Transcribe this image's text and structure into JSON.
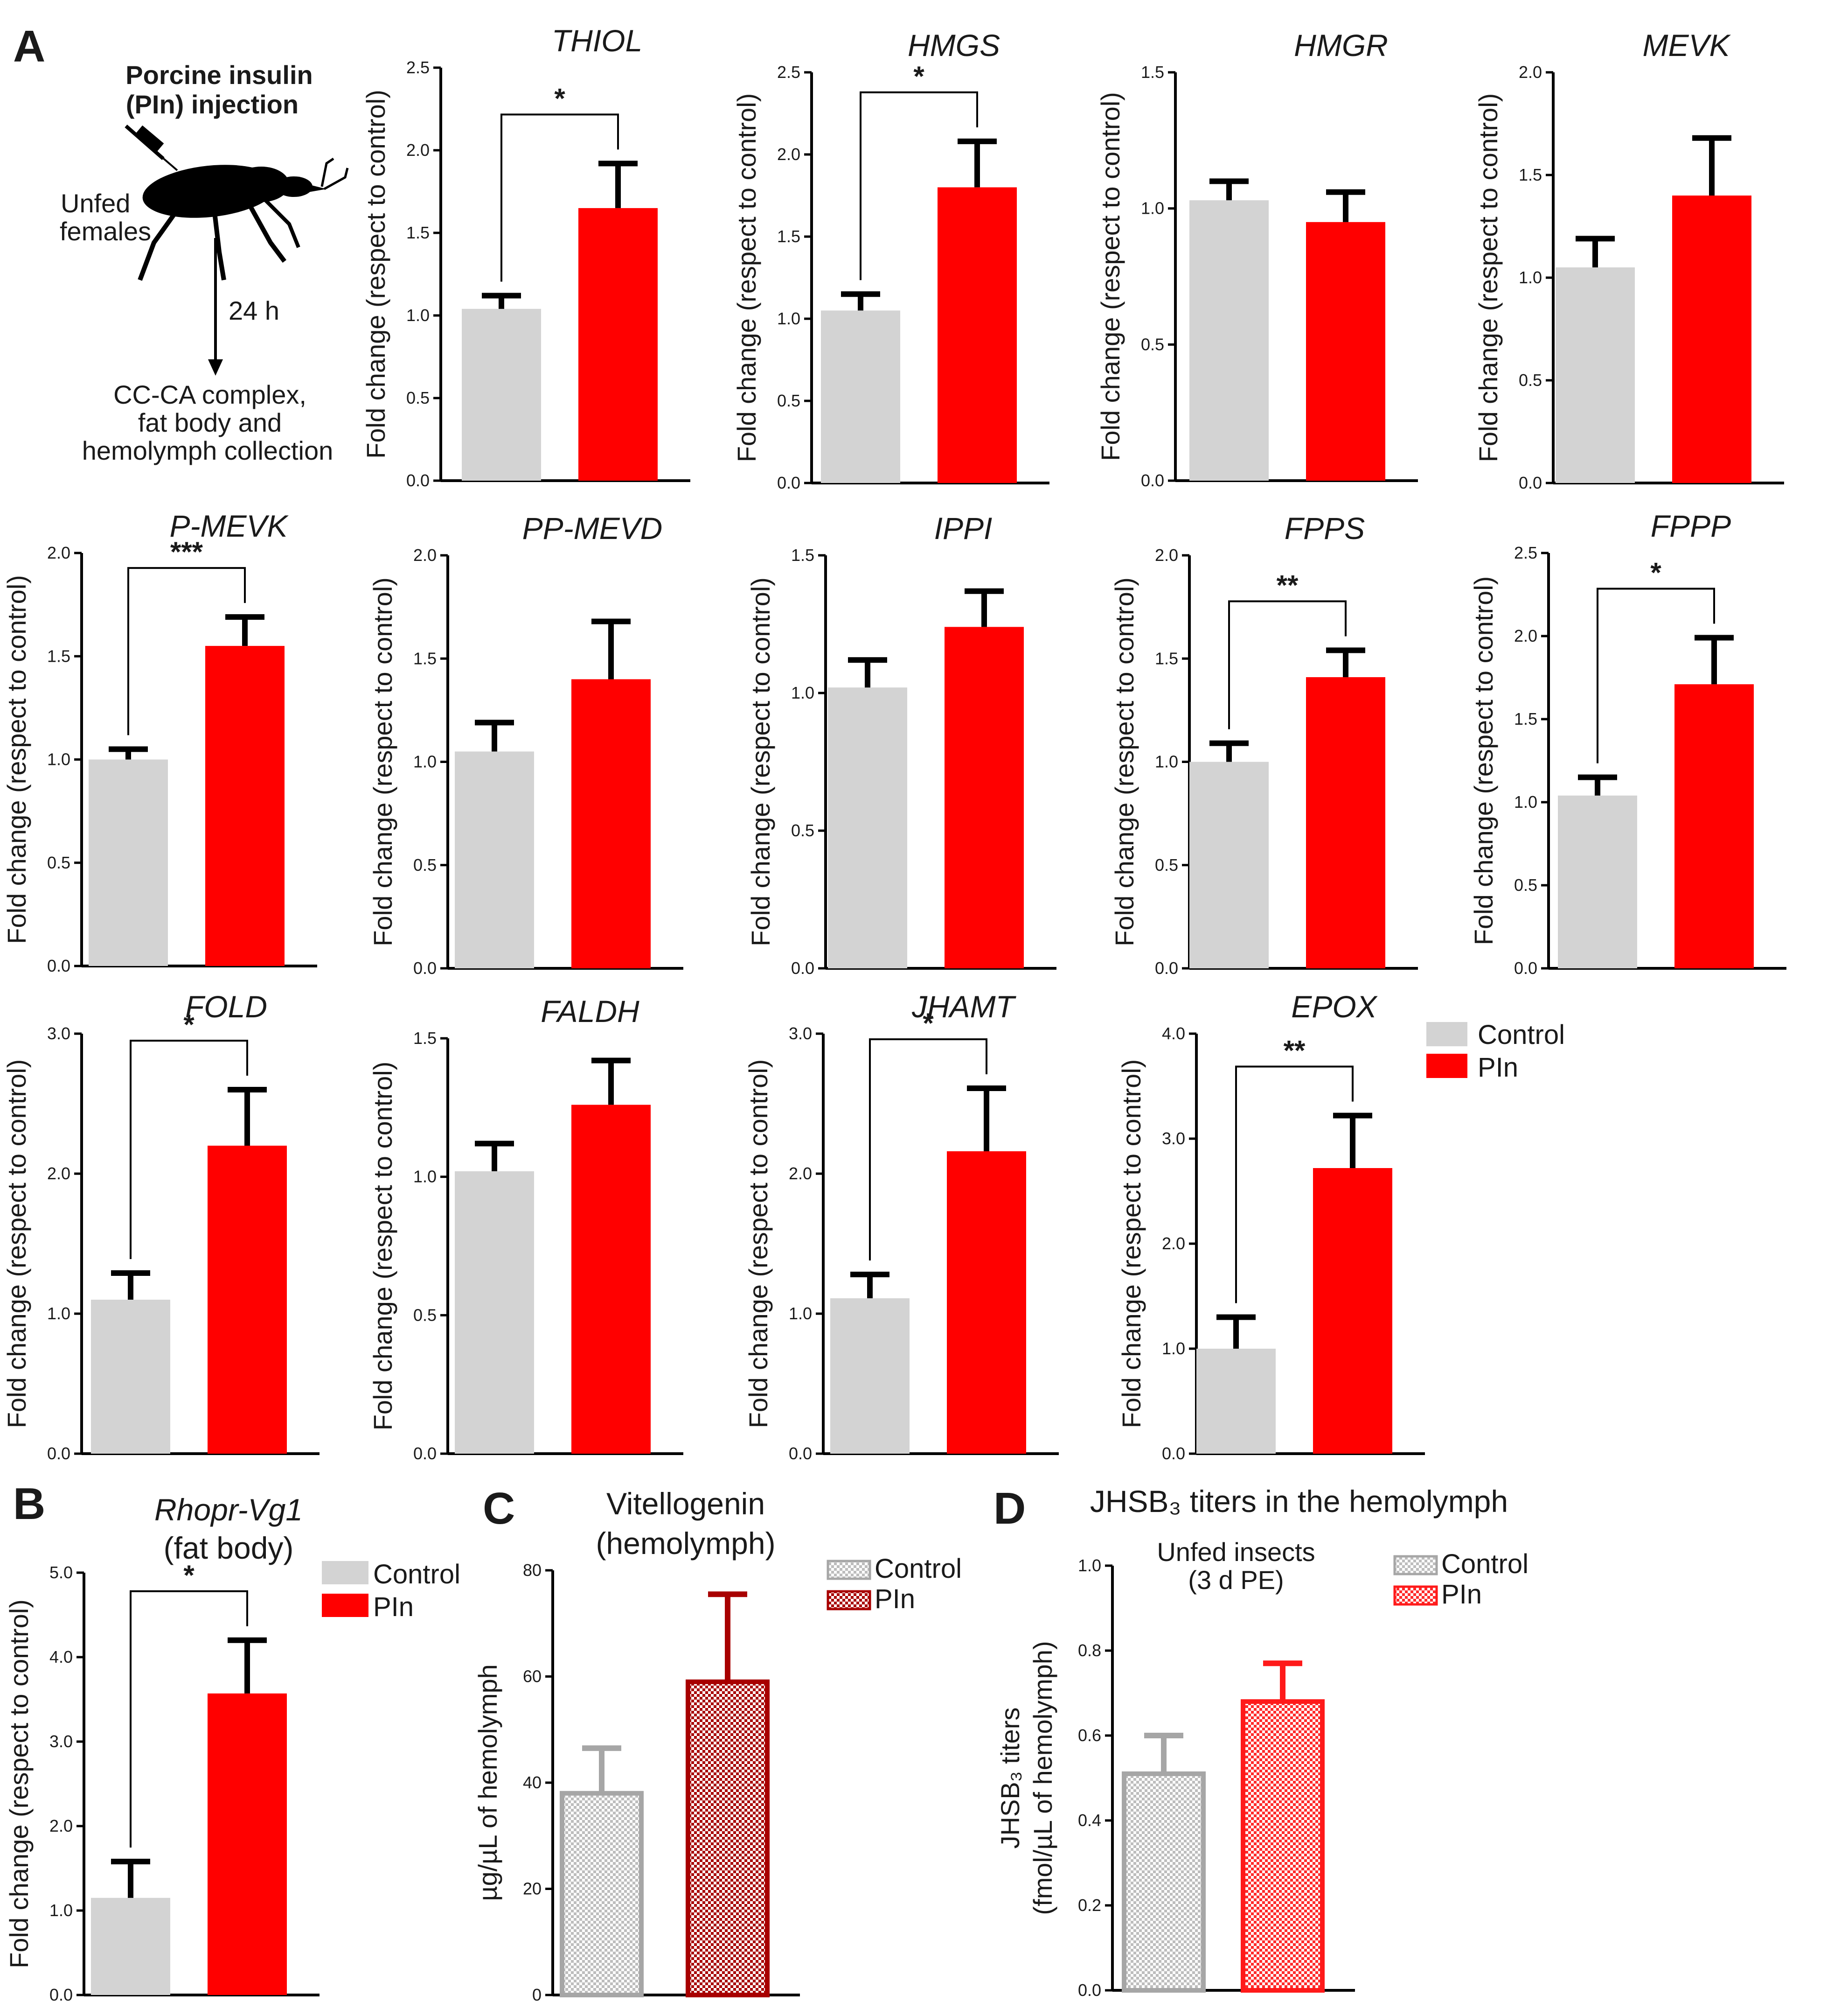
{
  "colors": {
    "control": "#d3d3d3",
    "pin": "#ff0000",
    "vg_control_edge": "#a6a6a6",
    "vg_pin_edge": "#a80000",
    "jh_control_edge": "#a6a6a6",
    "jh_pin_edge": "#ff1a1a",
    "axis": "#000000"
  },
  "panel_labels": {
    "A": "A",
    "B": "B",
    "C": "C",
    "D": "D"
  },
  "schematic": {
    "title_line1": "Porcine insulin",
    "title_line2": "(PIn) injection",
    "insect_label_line1": "Unfed",
    "insect_label_line2": "females",
    "time_label": "24 h",
    "collection_line1": "CC-CA complex,",
    "collection_line2": "fat body and",
    "collection_line3": "hemolymph collection"
  },
  "legend_A": {
    "control": "Control",
    "pin": "PIn"
  },
  "chart_data": [
    {
      "id": "THIOL",
      "type": "bar",
      "title": "THIOL",
      "ylabel": "Fold change (respect to control)",
      "ylim": [
        0,
        2.5
      ],
      "yticks": [
        "0.0",
        "0.5",
        "1.0",
        "1.5",
        "2.0",
        "2.5"
      ],
      "categories": [
        "Control",
        "PIn"
      ],
      "values": [
        1.04,
        1.65
      ],
      "errors": [
        0.08,
        0.27
      ],
      "significance": "*"
    },
    {
      "id": "HMGS",
      "type": "bar",
      "title": "HMGS",
      "ylabel": "Fold change (respect to control)",
      "ylim": [
        0,
        2.5
      ],
      "yticks": [
        "0.0",
        "0.5",
        "1.0",
        "1.5",
        "2.0",
        "2.5"
      ],
      "categories": [
        "Control",
        "PIn"
      ],
      "values": [
        1.05,
        1.8
      ],
      "errors": [
        0.1,
        0.28
      ],
      "significance": "*"
    },
    {
      "id": "HMGR",
      "type": "bar",
      "title": "HMGR",
      "ylabel": "Fold change (respect to control)",
      "ylim": [
        0,
        1.5
      ],
      "yticks": [
        "0.0",
        "0.5",
        "1.0",
        "1.5"
      ],
      "categories": [
        "Control",
        "PIn"
      ],
      "values": [
        1.03,
        0.95
      ],
      "errors": [
        0.07,
        0.11
      ],
      "significance": ""
    },
    {
      "id": "MEVK",
      "type": "bar",
      "title": "MEVK",
      "ylabel": "Fold change (respect to control)",
      "ylim": [
        0,
        2.0
      ],
      "yticks": [
        "0.0",
        "0.5",
        "1.0",
        "1.5",
        "2.0"
      ],
      "categories": [
        "Control",
        "PIn"
      ],
      "values": [
        1.05,
        1.4
      ],
      "errors": [
        0.14,
        0.28
      ],
      "significance": ""
    },
    {
      "id": "P-MEVK",
      "type": "bar",
      "title": "P-MEVK",
      "ylabel": "Fold change (respect to control)",
      "ylim": [
        0,
        2.0
      ],
      "yticks": [
        "0.0",
        "0.5",
        "1.0",
        "1.5",
        "2.0"
      ],
      "categories": [
        "Control",
        "PIn"
      ],
      "values": [
        1.0,
        1.55
      ],
      "errors": [
        0.05,
        0.14
      ],
      "significance": "***"
    },
    {
      "id": "PP-MEVD",
      "type": "bar",
      "title": "PP-MEVD",
      "ylabel": "Fold change (respect to control)",
      "ylim": [
        0,
        2.0
      ],
      "yticks": [
        "0.0",
        "0.5",
        "1.0",
        "1.5",
        "2.0"
      ],
      "categories": [
        "Control",
        "PIn"
      ],
      "values": [
        1.05,
        1.4
      ],
      "errors": [
        0.14,
        0.28
      ],
      "significance": ""
    },
    {
      "id": "IPPI",
      "type": "bar",
      "title": "IPPI",
      "ylabel": "Fold change (respect to control)",
      "ylim": [
        0,
        1.5
      ],
      "yticks": [
        "0.0",
        "0.5",
        "1.0",
        "1.5"
      ],
      "categories": [
        "Control",
        "PIn"
      ],
      "values": [
        1.02,
        1.24
      ],
      "errors": [
        0.1,
        0.13
      ],
      "significance": ""
    },
    {
      "id": "FPPS",
      "type": "bar",
      "title": "FPPS",
      "ylabel": "Fold change (respect to control)",
      "ylim": [
        0,
        2.0
      ],
      "yticks": [
        "0.0",
        "0.5",
        "1.0",
        "1.5",
        "2.0"
      ],
      "categories": [
        "Control",
        "PIn"
      ],
      "values": [
        1.0,
        1.41
      ],
      "errors": [
        0.09,
        0.13
      ],
      "significance": "**"
    },
    {
      "id": "FPPP",
      "type": "bar",
      "title": "FPPP",
      "ylabel": "Fold change (respect to control)",
      "ylim": [
        0,
        2.5
      ],
      "yticks": [
        "0.0",
        "0.5",
        "1.0",
        "1.5",
        "2.0",
        "2.5"
      ],
      "categories": [
        "Control",
        "PIn"
      ],
      "values": [
        1.04,
        1.71
      ],
      "errors": [
        0.11,
        0.28
      ],
      "significance": "*"
    },
    {
      "id": "FOLD",
      "type": "bar",
      "title": "FOLD",
      "ylabel": "Fold change (respect to control)",
      "ylim": [
        0,
        3.0
      ],
      "yticks": [
        "0.0",
        "1.0",
        "2.0",
        "3.0"
      ],
      "categories": [
        "Control",
        "PIn"
      ],
      "values": [
        1.1,
        2.2
      ],
      "errors": [
        0.19,
        0.4
      ],
      "significance": "*"
    },
    {
      "id": "FALDH",
      "type": "bar",
      "title": "FALDH",
      "ylabel": "Fold change (respect to control)",
      "ylim": [
        0,
        1.5
      ],
      "yticks": [
        "0.0",
        "0.5",
        "1.0",
        "1.5"
      ],
      "categories": [
        "Control",
        "PIn"
      ],
      "values": [
        1.02,
        1.26
      ],
      "errors": [
        0.1,
        0.16
      ],
      "significance": ""
    },
    {
      "id": "JHAMT",
      "type": "bar",
      "title": "JHAMT",
      "ylabel": "Fold change (respect to control)",
      "ylim": [
        0,
        3.0
      ],
      "yticks": [
        "0.0",
        "1.0",
        "2.0",
        "3.0"
      ],
      "categories": [
        "Control",
        "PIn"
      ],
      "values": [
        1.11,
        2.16
      ],
      "errors": [
        0.17,
        0.45
      ],
      "significance": "*"
    },
    {
      "id": "EPOX",
      "type": "bar",
      "title": "EPOX",
      "ylabel": "Fold change (respect to control)",
      "ylim": [
        0,
        4.0
      ],
      "yticks": [
        "0.0",
        "1.0",
        "2.0",
        "3.0",
        "4.0"
      ],
      "categories": [
        "Control",
        "PIn"
      ],
      "values": [
        1.0,
        2.72
      ],
      "errors": [
        0.3,
        0.5
      ],
      "significance": "**"
    },
    {
      "id": "Rhopr-Vg1",
      "type": "bar",
      "title": "Rhopr-Vg1",
      "subtitle": "(fat body)",
      "ylabel": "Fold change (respect to control)",
      "ylim": [
        0,
        5.0
      ],
      "yticks": [
        "0.0",
        "1.0",
        "2.0",
        "3.0",
        "4.0",
        "5.0"
      ],
      "categories": [
        "Control",
        "PIn"
      ],
      "values": [
        1.15,
        3.57
      ],
      "errors": [
        0.43,
        0.63
      ],
      "significance": "*",
      "legend": {
        "control": "Control",
        "pin": "PIn"
      }
    },
    {
      "id": "Vitellogenin",
      "type": "bar",
      "title": "Vitellogenin",
      "subtitle": "(hemolymph)",
      "ylabel": "µg/µL of hemolymph",
      "ylim": [
        0,
        80
      ],
      "yticks": [
        "0",
        "20",
        "40",
        "60",
        "80"
      ],
      "categories": [
        "Control",
        "PIn"
      ],
      "values": [
        38,
        59
      ],
      "errors": [
        8.5,
        16.5
      ],
      "significance": "",
      "legend": {
        "control": "Control",
        "pin": "PIn"
      }
    },
    {
      "id": "JHSB3",
      "type": "bar",
      "title": "JHSB₃ titers in the hemolymph",
      "subtitle_line1": "Unfed insects",
      "subtitle_line2": "(3 d PE)",
      "ylabel_line1": "JHSB₃ titers",
      "ylabel_line2": "(fmol/µL of hemolymph)",
      "ylim": [
        0,
        1.0
      ],
      "yticks": [
        "0.0",
        "0.2",
        "0.4",
        "0.6",
        "0.8",
        "1.0"
      ],
      "categories": [
        "Control",
        "PIn"
      ],
      "values": [
        0.51,
        0.68
      ],
      "errors": [
        0.09,
        0.09
      ],
      "significance": "",
      "legend": {
        "control": "Control",
        "pin": "PIn"
      }
    }
  ]
}
